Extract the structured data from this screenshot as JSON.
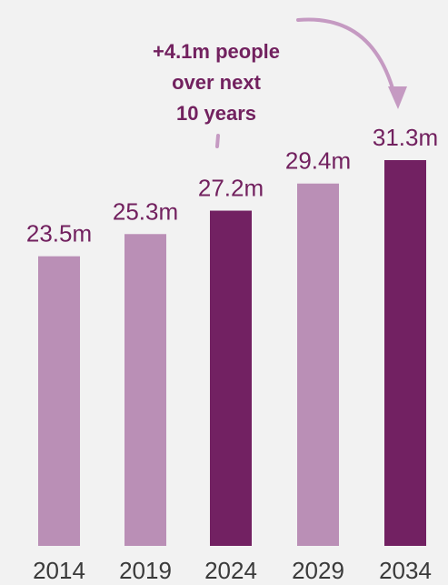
{
  "chart_data": {
    "type": "bar",
    "categories": [
      "2014",
      "2019",
      "2024",
      "2029",
      "2034"
    ],
    "values": [
      23.5,
      25.3,
      27.2,
      29.4,
      31.3
    ],
    "value_labels": [
      "23.5m",
      "25.3m",
      "27.2m",
      "29.4m",
      "31.3m"
    ],
    "unit": "m",
    "ylim": [
      0,
      31.3
    ],
    "highlighted": [
      "2024",
      "2034"
    ],
    "annotation": {
      "lines": [
        "+4.1m people",
        "over next",
        "10 years"
      ],
      "from": "2024",
      "to": "2034"
    },
    "title": "",
    "xlabel": "",
    "ylabel": "",
    "grid": false,
    "legend": "none"
  },
  "colors": {
    "highlight": "#722162",
    "normal": "#ba8fb6",
    "text": "#72215f",
    "axis_text": "#3a3a3a",
    "arrow": "#c59ac2",
    "background": "#f2f2f2"
  }
}
